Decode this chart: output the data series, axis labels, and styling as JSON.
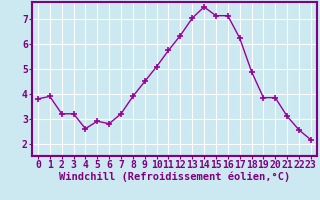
{
  "x": [
    0,
    1,
    2,
    3,
    4,
    5,
    6,
    7,
    8,
    9,
    10,
    11,
    12,
    13,
    14,
    15,
    16,
    17,
    18,
    19,
    20,
    21,
    22,
    23
  ],
  "y": [
    3.8,
    3.9,
    3.2,
    3.2,
    2.6,
    2.9,
    2.8,
    3.2,
    3.9,
    4.5,
    5.1,
    5.75,
    6.35,
    7.05,
    7.5,
    7.15,
    7.15,
    6.25,
    4.9,
    3.85,
    3.85,
    3.1,
    2.55,
    2.15
  ],
  "line_color": "#990099",
  "marker": "+",
  "marker_size": 5,
  "marker_lw": 1.2,
  "bg_color": "#cce8f0",
  "plot_bg_color": "#cce8f0",
  "grid_color": "#ffffff",
  "xlabel": "Windchill (Refroidissement éolien,°C)",
  "ylim": [
    1.5,
    7.7
  ],
  "xlim": [
    -0.5,
    23.5
  ],
  "yticks": [
    2,
    3,
    4,
    5,
    6,
    7
  ],
  "xticks": [
    0,
    1,
    2,
    3,
    4,
    5,
    6,
    7,
    8,
    9,
    10,
    11,
    12,
    13,
    14,
    15,
    16,
    17,
    18,
    19,
    20,
    21,
    22,
    23
  ],
  "xlabel_fontsize": 7.5,
  "tick_fontsize": 7,
  "label_color": "#800080",
  "spine_color": "#800080",
  "spine_lw": 1.5,
  "line_lw": 1.0
}
